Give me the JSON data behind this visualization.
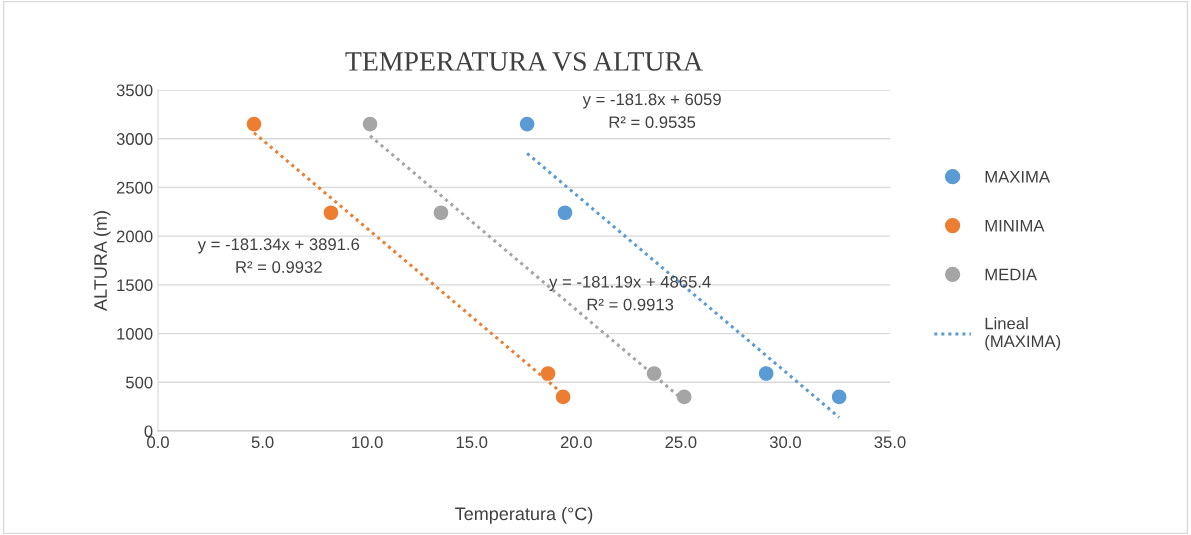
{
  "chart_data": {
    "type": "scatter",
    "title": "TEMPERATURA VS ALTURA",
    "xlabel": "Temperatura (°C)",
    "ylabel": "ALTURA (m)",
    "xlim": [
      0,
      35
    ],
    "xticks": [
      {
        "value": 0,
        "label": "0.0"
      },
      {
        "value": 5,
        "label": "5.0"
      },
      {
        "value": 10,
        "label": "10.0"
      },
      {
        "value": 15,
        "label": "15.0"
      },
      {
        "value": 20,
        "label": "20.0"
      },
      {
        "value": 25,
        "label": "25.0"
      },
      {
        "value": 30,
        "label": "30.0"
      },
      {
        "value": 35,
        "label": "35.0"
      }
    ],
    "ylim": [
      0,
      3500
    ],
    "yticks": [
      0,
      500,
      1000,
      1500,
      2000,
      2500,
      3000,
      3500
    ],
    "grid": "y",
    "legend": "right",
    "marker": "circle",
    "series": [
      {
        "name": "MAXIMA",
        "color": "#5b9bd5",
        "x": [
          17.65,
          19.46,
          29.08,
          32.57
        ],
        "values": [
          3150,
          2240,
          590,
          350
        ]
      },
      {
        "name": "MINIMA",
        "color": "#ed7d31",
        "x": [
          4.59,
          8.27,
          18.65,
          19.37
        ],
        "values": [
          3150,
          2240,
          590,
          350
        ]
      },
      {
        "name": "MEDIA",
        "color": "#a5a5a5",
        "x": [
          10.14,
          13.53,
          23.72,
          25.16
        ],
        "values": [
          3150,
          2240,
          590,
          350
        ]
      },
      {
        "name": "Lineal\n(MAXIMA)",
        "type": "line",
        "line_style": "dotted",
        "marker": "none",
        "color": "#5b9bd5",
        "x": [
          17.65,
          32.57
        ],
        "values": [
          2850,
          140
        ]
      },
      {
        "type": "line",
        "line_style": "dotted",
        "marker": "none",
        "color": "#ed7d31",
        "x": [
          4.59,
          19.37
        ],
        "values": [
          3060,
          380
        ]
      },
      {
        "type": "line",
        "line_style": "dotted",
        "marker": "none",
        "color": "#a5a5a5",
        "x": [
          10.14,
          25.16
        ],
        "values": [
          3030,
          310
        ]
      }
    ],
    "annotations": [
      "y = -181.8x + 6059\nR² = 0.9535",
      "y = -181.34x + 3891.6\nR² = 0.9932",
      "y = -181.19x + 4865.4\nR² = 0.9913"
    ]
  }
}
